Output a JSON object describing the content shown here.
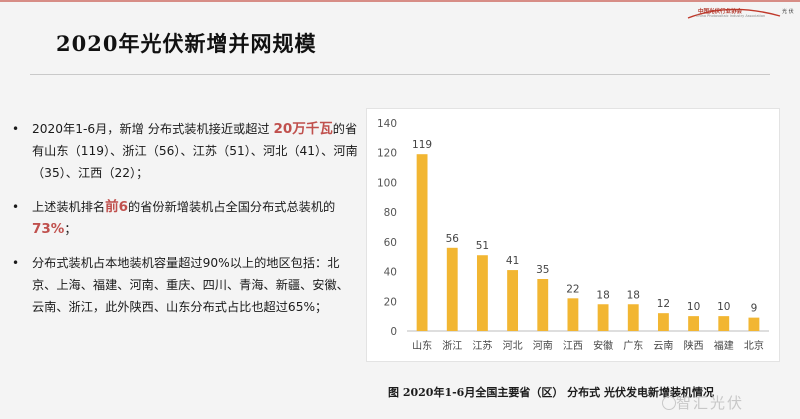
{
  "header": {
    "title": "2020年光伏新增并网规模",
    "logo_org": "中国光伏行业协会",
    "logo_en": "China Photovoltaic Industry Association",
    "logo_right": "光 伏"
  },
  "bullets": [
    {
      "parts": [
        {
          "text": "2020年1-6月，新增 分布式装机接近或超过 ",
          "hl": false
        },
        {
          "text": "20万千瓦",
          "hl": true
        },
        {
          "text": "的省有山东（119）、浙江（56）、江苏（51）、河北（41）、河南（35）、江西（22）；",
          "hl": false
        }
      ]
    },
    {
      "parts": [
        {
          "text": "上述装机排名",
          "hl": false
        },
        {
          "text": "前6",
          "hl": true
        },
        {
          "text": "的省份新增装机占全国分布式总装机的",
          "hl": false
        },
        {
          "text": "73%",
          "hl": true
        },
        {
          "text": "；",
          "hl": false
        }
      ]
    },
    {
      "parts": [
        {
          "text": "分布式装机占本地装机容量超过90%以上的地区包括：北京、上海、福建、河南、重庆、四川、青海、新疆、安徽、云南、浙江，此外陕西、山东分布式占比也超过65%；",
          "hl": false
        }
      ]
    }
  ],
  "caption": "图 2020年1-6月全国主要省（区） 分布式 光伏发电新增装机情况",
  "watermark": "智汇光伏",
  "colors": {
    "bar": "#f2b632",
    "highlight": "#c0504d",
    "accent": "#c0392b"
  },
  "chart_data": {
    "type": "bar",
    "categories": [
      "山东",
      "浙江",
      "江苏",
      "河北",
      "河南",
      "江西",
      "安徽",
      "广东",
      "云南",
      "陕西",
      "福建",
      "北京"
    ],
    "values": [
      119,
      56,
      51,
      41,
      35,
      22,
      18,
      18,
      12,
      10,
      10,
      9
    ],
    "ylim": [
      0,
      140
    ],
    "yticks": [
      0,
      20,
      40,
      60,
      80,
      100,
      120,
      140
    ],
    "grid": false,
    "title": "",
    "xlabel": "",
    "ylabel": ""
  }
}
